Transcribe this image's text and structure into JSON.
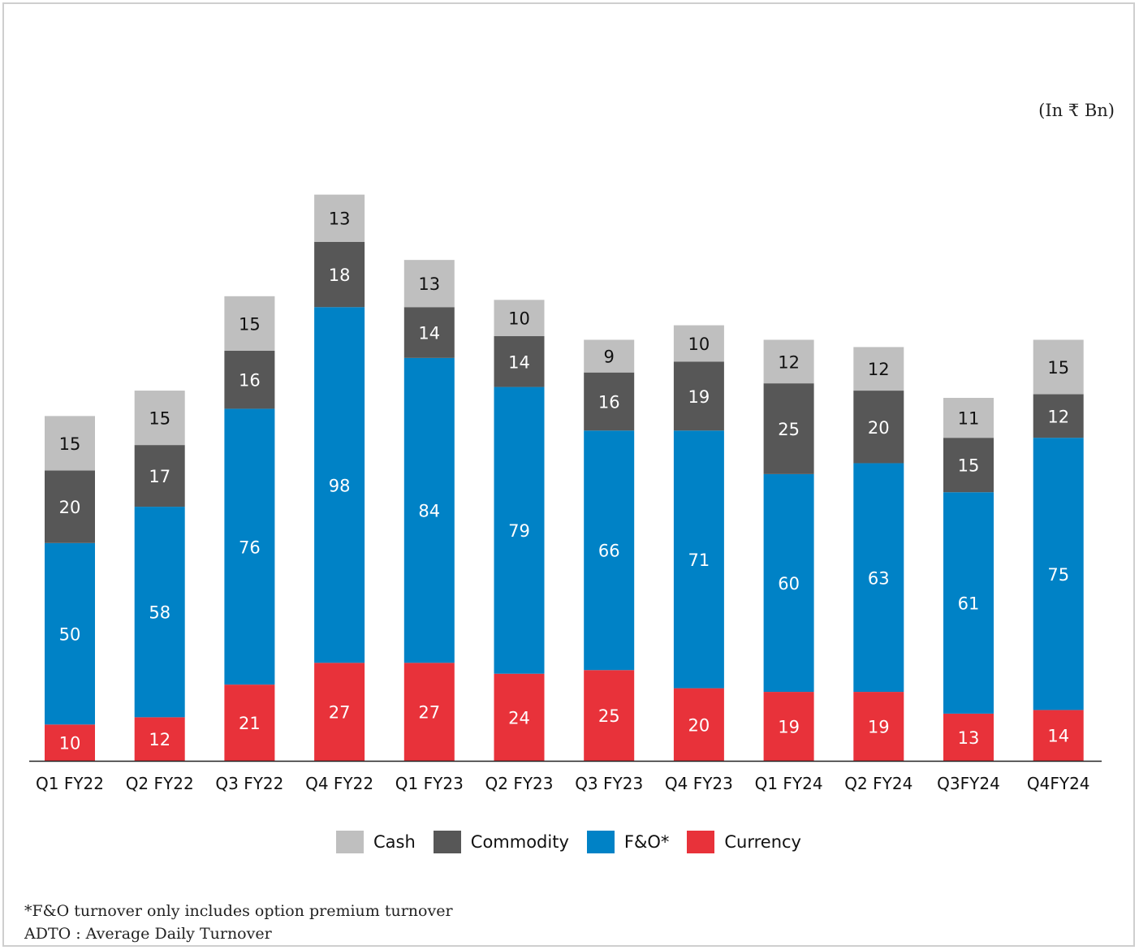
{
  "unit_label": "(In ₹ Bn)",
  "chart_data": {
    "type": "bar",
    "stacked": true,
    "categories": [
      "Q1 FY22",
      "Q2 FY22",
      "Q3 FY22",
      "Q4 FY22",
      "Q1 FY23",
      "Q2 FY23",
      "Q3 FY23",
      "Q4 FY23",
      "Q1 FY24",
      "Q2 FY24",
      "Q3FY24",
      "Q4FY24"
    ],
    "series": [
      {
        "name": "Currency",
        "color": "#e8323a",
        "label_color": "#ffffff",
        "values": [
          10,
          12,
          21,
          27,
          27,
          24,
          25,
          20,
          19,
          19,
          13,
          14
        ]
      },
      {
        "name": "F&O*",
        "color": "#0082c6",
        "label_color": "#ffffff",
        "values": [
          50,
          58,
          76,
          98,
          84,
          79,
          66,
          71,
          60,
          63,
          61,
          75
        ]
      },
      {
        "name": "Commodity",
        "color": "#575757",
        "label_color": "#ffffff",
        "values": [
          20,
          17,
          16,
          18,
          14,
          14,
          16,
          19,
          25,
          20,
          15,
          12
        ]
      },
      {
        "name": "Cash",
        "color": "#bfbfbf",
        "label_color": "#111111",
        "values": [
          15,
          15,
          15,
          13,
          13,
          10,
          9,
          10,
          12,
          12,
          11,
          15
        ]
      }
    ],
    "legend_order": [
      "Cash",
      "Commodity",
      "F&O*",
      "Currency"
    ],
    "legend_position": "bottom",
    "grid": false,
    "ylim": [
      0,
      160
    ]
  },
  "footnotes": [
    "*F&O turnover only includes option premium turnover",
    "ADTO : Average Daily Turnover"
  ]
}
